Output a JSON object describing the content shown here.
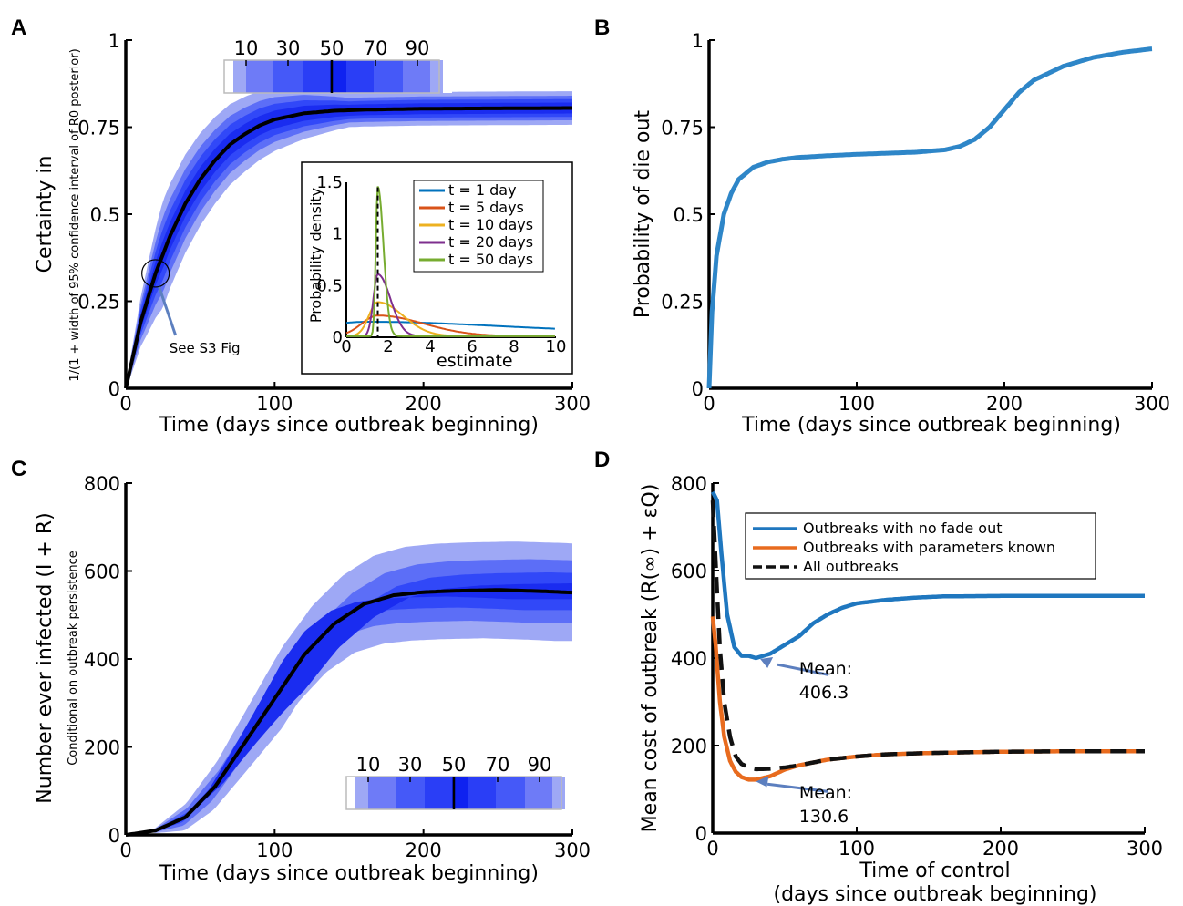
{
  "chart_data": [
    {
      "panel": "A",
      "type": "area",
      "xlabel": "Time (days since outbreak beginning)",
      "ylabel": "Certainty in R0",
      "ylabel_sub": "1/(1 + width of 95% confidence interval of R0 posterior)",
      "xlim": [
        0,
        300
      ],
      "ylim": [
        0,
        1
      ],
      "xticks": [
        "0",
        "100",
        "200",
        "300"
      ],
      "yticks": [
        "0",
        "0.25",
        "0.5",
        "0.75",
        "1"
      ],
      "percentile_labels": [
        "10",
        "30",
        "50",
        "70",
        "90"
      ],
      "median": {
        "x": [
          0,
          10,
          20,
          30,
          40,
          50,
          60,
          70,
          80,
          90,
          100,
          120,
          140,
          160,
          200,
          250,
          300
        ],
        "y": [
          0,
          0.19,
          0.33,
          0.44,
          0.53,
          0.6,
          0.655,
          0.7,
          0.73,
          0.755,
          0.772,
          0.79,
          0.797,
          0.8,
          0.803,
          0.804,
          0.805
        ]
      },
      "band_half_widths": [
        0.03,
        0.06,
        0.09,
        0.13
      ],
      "annotation": "See S3 Fig",
      "inset": {
        "type": "line",
        "xlabel": "R0 estimate",
        "ylabel": "Probability density",
        "xlim": [
          0,
          10
        ],
        "ylim": [
          0,
          1.5
        ],
        "xticks": [
          "0",
          "2",
          "4",
          "6",
          "8",
          "10"
        ],
        "yticks": [
          "0",
          "0.5",
          "1",
          "1.5"
        ],
        "series": [
          {
            "name": "t = 1 day",
            "color": "#0072BD",
            "peak": 0.1,
            "mode": 1.0,
            "spread": 6.0
          },
          {
            "name": "t = 5 days",
            "color": "#D95319",
            "peak": 0.2,
            "mode": 1.5,
            "spread": 2.2
          },
          {
            "name": "t = 10 days",
            "color": "#EDB120",
            "peak": 0.33,
            "mode": 1.5,
            "spread": 1.2
          },
          {
            "name": "t = 20 days",
            "color": "#7E2F8E",
            "peak": 0.6,
            "mode": 1.5,
            "spread": 0.6
          },
          {
            "name": "t = 50 days",
            "color": "#77AC30",
            "peak": 1.45,
            "mode": 1.5,
            "spread": 0.27
          }
        ],
        "true_value": 1.5
      }
    },
    {
      "panel": "B",
      "type": "line",
      "xlabel": "Time (days since outbreak beginning)",
      "ylabel": "Probability of die out",
      "xlim": [
        0,
        300
      ],
      "ylim": [
        0,
        1
      ],
      "xticks": [
        "0",
        "100",
        "200",
        "300"
      ],
      "yticks": [
        "0",
        "0.25",
        "0.5",
        "0.75",
        "1"
      ],
      "series": [
        {
          "color": "#2E86C8",
          "x": [
            0,
            2,
            5,
            10,
            15,
            20,
            30,
            40,
            50,
            60,
            80,
            100,
            120,
            140,
            160,
            170,
            180,
            190,
            200,
            210,
            220,
            240,
            260,
            280,
            300
          ],
          "y": [
            0,
            0.22,
            0.38,
            0.5,
            0.56,
            0.6,
            0.635,
            0.65,
            0.658,
            0.663,
            0.668,
            0.672,
            0.675,
            0.678,
            0.685,
            0.695,
            0.715,
            0.75,
            0.8,
            0.85,
            0.885,
            0.925,
            0.95,
            0.965,
            0.975
          ]
        }
      ]
    },
    {
      "panel": "C",
      "type": "area",
      "xlabel": "Time (days since outbreak beginning)",
      "ylabel": "Number ever infected (I + R)",
      "ylabel_sub": "Conditional on outbreak persistence",
      "xlim": [
        0,
        300
      ],
      "ylim": [
        0,
        800
      ],
      "xticks": [
        "0",
        "100",
        "200",
        "300"
      ],
      "yticks": [
        "0",
        "200",
        "400",
        "600",
        "800"
      ],
      "percentile_labels": [
        "10",
        "30",
        "50",
        "70",
        "90"
      ],
      "median": {
        "x": [
          0,
          20,
          40,
          60,
          80,
          100,
          120,
          140,
          160,
          180,
          200,
          220,
          250,
          280,
          300
        ],
        "y": [
          0,
          10,
          40,
          110,
          210,
          310,
          410,
          480,
          525,
          545,
          552,
          555,
          557,
          554,
          551
        ]
      },
      "band_offsets": [
        15,
        40,
        70,
        110
      ],
      "band_scale_outer": [
        1.35,
        1.25
      ]
    },
    {
      "panel": "D",
      "type": "line",
      "xlabel": "Time of control",
      "xlabel2": "(days since outbreak beginning)",
      "ylabel": "Mean cost of outbreak (R(∞) + εQ)",
      "xlim": [
        0,
        300
      ],
      "ylim": [
        0,
        800
      ],
      "xticks": [
        "0",
        "100",
        "200",
        "300"
      ],
      "yticks": [
        "0",
        "200",
        "400",
        "600",
        "800"
      ],
      "legend_position": "top-right",
      "series": [
        {
          "name": "Outbreaks with no fade out",
          "color": "#1F77BF",
          "dash": false,
          "x": [
            0,
            3,
            6,
            10,
            15,
            20,
            25,
            30,
            35,
            40,
            50,
            60,
            70,
            80,
            90,
            100,
            120,
            140,
            160,
            200,
            250,
            300
          ],
          "y": [
            780,
            760,
            640,
            500,
            425,
            405,
            405,
            400,
            405,
            410,
            430,
            450,
            480,
            500,
            515,
            525,
            533,
            538,
            541,
            542,
            542,
            542
          ]
        },
        {
          "name": "Outbreaks with parameters known",
          "color": "#E86B1E",
          "dash": false,
          "x": [
            0,
            2,
            5,
            8,
            12,
            16,
            20,
            25,
            30,
            40,
            50,
            60,
            80,
            100,
            120,
            150,
            200,
            250,
            300
          ],
          "y": [
            495,
            430,
            300,
            220,
            165,
            140,
            128,
            122,
            122,
            130,
            145,
            155,
            168,
            175,
            180,
            183,
            186,
            187,
            187
          ]
        },
        {
          "name": "All outbreaks",
          "color": "#111111",
          "dash": true,
          "x": [
            0,
            2,
            5,
            8,
            12,
            16,
            20,
            25,
            30,
            40,
            50,
            60,
            80,
            100,
            120,
            150,
            200,
            250,
            300
          ],
          "y": [
            760,
            620,
            420,
            300,
            220,
            175,
            158,
            150,
            146,
            147,
            150,
            155,
            168,
            175,
            180,
            183,
            186,
            187,
            187
          ]
        }
      ],
      "annotations": [
        {
          "line1": "Mean:",
          "line2": "406.3"
        },
        {
          "line1": "Mean:",
          "line2": "130.6"
        }
      ]
    }
  ],
  "panels": {
    "a": "A",
    "b": "B",
    "c": "C",
    "d": "D"
  }
}
